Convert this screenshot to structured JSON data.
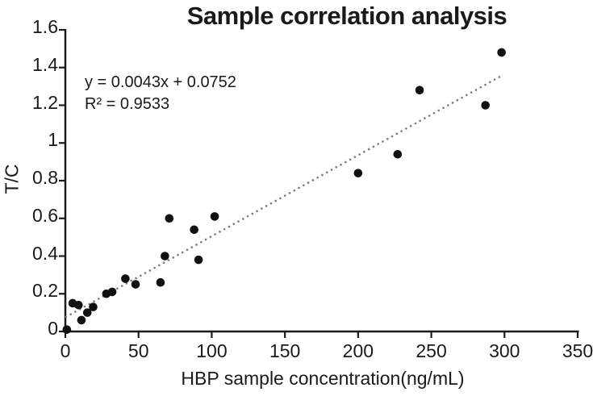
{
  "chart_data": {
    "type": "scatter",
    "title": "Sample correlation analysis",
    "xlabel": "HBP sample concentration(ng/mL)",
    "ylabel": "T/C",
    "xlim": [
      0,
      350
    ],
    "ylim": [
      0,
      1.6
    ],
    "x_ticks": [
      "0",
      "50",
      "100",
      "150",
      "200",
      "250",
      "300",
      "350"
    ],
    "y_ticks": [
      "0",
      "0.2",
      "0.4",
      "0.6",
      "0.8",
      "1",
      "1.2",
      "1.4",
      "1.6"
    ],
    "grid": false,
    "legend": "none",
    "points": [
      [
        1,
        0.01
      ],
      [
        5,
        0.15
      ],
      [
        9,
        0.14
      ],
      [
        11,
        0.06
      ],
      [
        15,
        0.1
      ],
      [
        19,
        0.13
      ],
      [
        28,
        0.2
      ],
      [
        32,
        0.21
      ],
      [
        41,
        0.28
      ],
      [
        48,
        0.25
      ],
      [
        65,
        0.26
      ],
      [
        68,
        0.4
      ],
      [
        71,
        0.6
      ],
      [
        88,
        0.54
      ],
      [
        91,
        0.38
      ],
      [
        102,
        0.61
      ],
      [
        200,
        0.84
      ],
      [
        227,
        0.94
      ],
      [
        242,
        1.28
      ],
      [
        287,
        1.2
      ],
      [
        298,
        1.48
      ]
    ],
    "trendline": {
      "slope": 0.0043,
      "intercept": 0.0752,
      "x_start": 0.5,
      "x_end": 297,
      "style": "dotted"
    },
    "annotations": {
      "equation": "y = 0.0043x + 0.0752",
      "r_squared": "R² = 0.9533"
    },
    "colors": {
      "point": "#111111",
      "trendline": "#7f7f7f",
      "axis": "#1a1a1a",
      "text": "#1a1a1a",
      "background": "#ffffff"
    }
  }
}
